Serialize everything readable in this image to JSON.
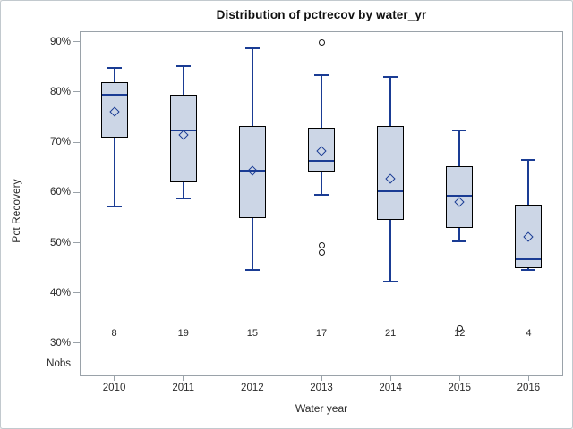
{
  "colors": {
    "box_fill": "#ccd6e6",
    "box_stroke": "#000000",
    "line_blue": "#1a3c94",
    "frame_gray": "#9aa2a9",
    "text": "#2a2a2a",
    "outlier_stroke": "#1a1a1a"
  },
  "nobs_label": "Nobs",
  "chart_data": {
    "type": "boxplot",
    "title": "Distribution of pctrecov by water_yr",
    "xlabel": "Water year",
    "ylabel": "Pct Recovery",
    "y_tick_labels": [
      "90%",
      "80%",
      "70%",
      "60%",
      "50%",
      "40%",
      "30%"
    ],
    "y_tick_values": [
      90,
      80,
      70,
      60,
      50,
      40,
      30
    ],
    "ylim": [
      23.4,
      92.1
    ],
    "grid": false,
    "categories": [
      "2010",
      "2011",
      "2012",
      "2013",
      "2014",
      "2015",
      "2016"
    ],
    "nobs": [
      8,
      19,
      15,
      17,
      21,
      12,
      4
    ],
    "boxes": [
      {
        "year": "2010",
        "n": 8,
        "whisker_low": 57.3,
        "q1": 70.9,
        "median": 79.4,
        "q3": 81.9,
        "whisker_high": 84.8,
        "mean": 76.0,
        "outliers": []
      },
      {
        "year": "2011",
        "n": 19,
        "whisker_low": 58.8,
        "q1": 62.1,
        "median": 72.3,
        "q3": 79.4,
        "whisker_high": 85.2,
        "mean": 71.4,
        "outliers": []
      },
      {
        "year": "2012",
        "n": 15,
        "whisker_low": 44.6,
        "q1": 54.9,
        "median": 64.3,
        "q3": 73.2,
        "whisker_high": 88.8,
        "mean": 64.4,
        "outliers": []
      },
      {
        "year": "2013",
        "n": 17,
        "whisker_low": 59.5,
        "q1": 64.2,
        "median": 66.3,
        "q3": 72.9,
        "whisker_high": 83.3,
        "mean": 68.2,
        "outliers": [
          89.9,
          49.5,
          48.1
        ]
      },
      {
        "year": "2014",
        "n": 21,
        "whisker_low": 42.2,
        "q1": 54.5,
        "median": 60.2,
        "q3": 73.2,
        "whisker_high": 83.0,
        "mean": 62.8,
        "outliers": []
      },
      {
        "year": "2015",
        "n": 12,
        "whisker_low": 50.2,
        "q1": 52.9,
        "median": 59.4,
        "q3": 65.2,
        "whisker_high": 72.4,
        "mean": 58.1,
        "outliers": [
          33.0
        ]
      },
      {
        "year": "2016",
        "n": 4,
        "whisker_low": 44.6,
        "q1": 44.9,
        "median": 46.7,
        "q3": 57.6,
        "whisker_high": 66.4,
        "mean": 51.1,
        "outliers": []
      }
    ]
  }
}
